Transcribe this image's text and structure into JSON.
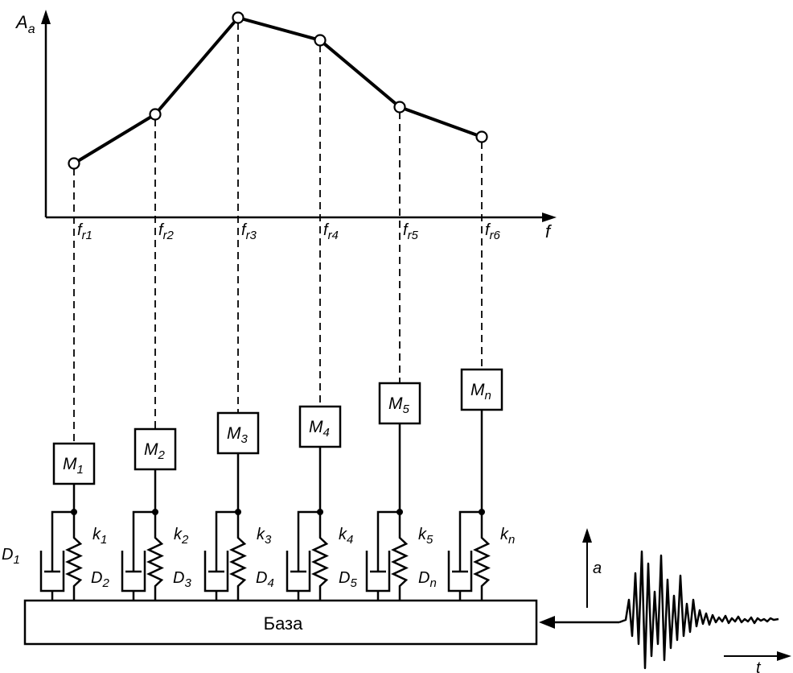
{
  "axis": {
    "y_label": "A",
    "y_label_sub": "a",
    "x_label": "f"
  },
  "frequencies": [
    {
      "main": "f",
      "sub": "r1"
    },
    {
      "main": "f",
      "sub": "r2"
    },
    {
      "main": "f",
      "sub": "r3"
    },
    {
      "main": "f",
      "sub": "r4"
    },
    {
      "main": "f",
      "sub": "r5"
    },
    {
      "main": "f",
      "sub": "r6"
    }
  ],
  "oscillators": [
    {
      "mass": "M",
      "mass_sub": "1",
      "spring": "k",
      "spring_sub": "1"
    },
    {
      "mass": "M",
      "mass_sub": "2",
      "spring": "k",
      "spring_sub": "2"
    },
    {
      "mass": "M",
      "mass_sub": "3",
      "spring": "k",
      "spring_sub": "3"
    },
    {
      "mass": "M",
      "mass_sub": "4",
      "spring": "k",
      "spring_sub": "4"
    },
    {
      "mass": "M",
      "mass_sub": "5",
      "spring": "k",
      "spring_sub": "5"
    },
    {
      "mass": "M",
      "mass_sub": "n",
      "spring": "k",
      "spring_sub": "n"
    }
  ],
  "dampers": [
    {
      "main": "D",
      "sub": "1"
    },
    {
      "main": "D",
      "sub": "2"
    },
    {
      "main": "D",
      "sub": "3"
    },
    {
      "main": "D",
      "sub": "4"
    },
    {
      "main": "D",
      "sub": "5"
    },
    {
      "main": "D",
      "sub": "n"
    }
  ],
  "base_label": "База",
  "signal": {
    "amplitude_label": "a",
    "time_label": "t"
  }
}
